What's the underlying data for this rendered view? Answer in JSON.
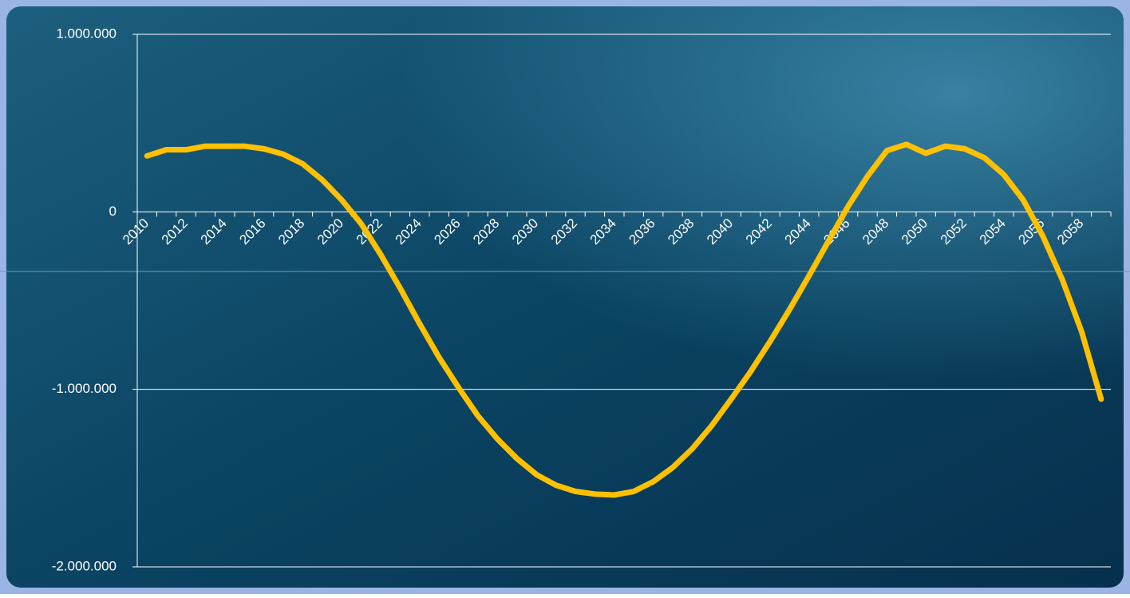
{
  "chart_data": {
    "type": "line",
    "categories": [
      "2010",
      null,
      "2012",
      null,
      "2014",
      null,
      "2016",
      null,
      "2018",
      null,
      "2020",
      null,
      "2022",
      null,
      "2024",
      null,
      "2026",
      null,
      "2028",
      null,
      "2030",
      null,
      "2032",
      null,
      "2034",
      null,
      "2036",
      null,
      "2038",
      null,
      "2040",
      null,
      "2042",
      null,
      "2044",
      null,
      "2046",
      null,
      "2048",
      null,
      "2050",
      null,
      "2052",
      null,
      "2054",
      null,
      "2056",
      null,
      "2058",
      null
    ],
    "series": [
      {
        "color": "#ffc000",
        "values": [
          315000,
          350000,
          350000,
          370000,
          370000,
          370000,
          355000,
          325000,
          270000,
          180000,
          67000,
          -67000,
          -240000,
          -430000,
          -630000,
          -820000,
          -990000,
          -1150000,
          -1280000,
          -1390000,
          -1480000,
          -1540000,
          -1575000,
          -1590000,
          -1595000,
          -1575000,
          -1520000,
          -1440000,
          -1335000,
          -1205000,
          -1055000,
          -900000,
          -730000,
          -550000,
          -360000,
          -165000,
          30000,
          200000,
          345000,
          380000,
          330000,
          370000,
          355000,
          305000,
          210000,
          67000,
          -135000,
          -380000,
          -675000,
          -1055000
        ]
      }
    ],
    "ylim": [
      -2000000,
      1000000
    ],
    "yticks": [
      {
        "value": -2000000,
        "label": "-2.000.000"
      },
      {
        "value": -1000000,
        "label": "-1.000.000"
      },
      0,
      {
        "value": 1000000,
        "label": "1.000.000"
      }
    ],
    "grid": true
  }
}
